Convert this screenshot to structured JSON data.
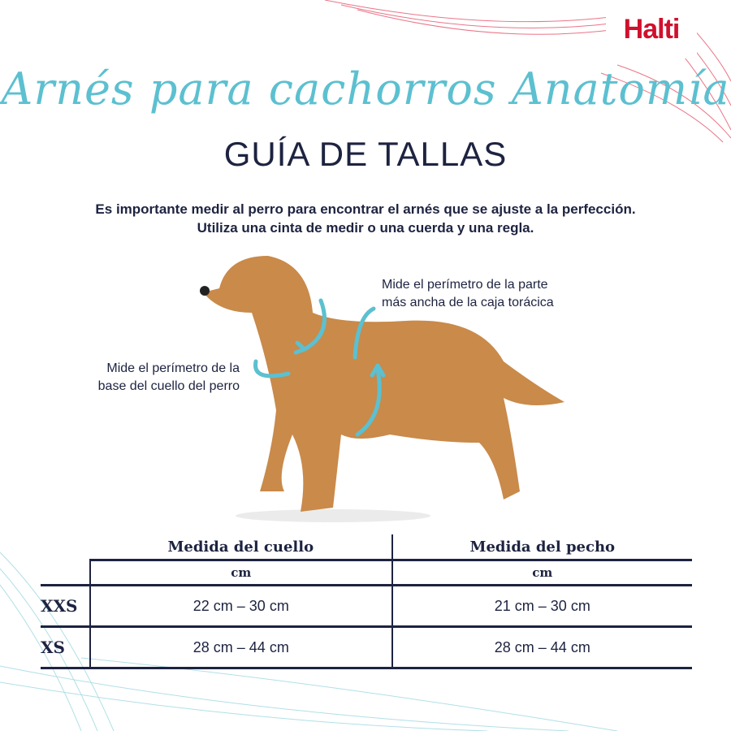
{
  "brand": {
    "logo": "Halti",
    "accent": "#d0102c",
    "script_color": "#5cc0d0"
  },
  "header": {
    "script_title": "Arnés para cachorros Anatomía",
    "title": "GUÍA DE TALLAS"
  },
  "intro": {
    "line1": "Es importante medir al perro para encontrar el arnés que se ajuste a la perfección.",
    "line2": "Utiliza una cinta de medir o una cuerda y una regla."
  },
  "annotations": {
    "chest_line1": "Mide el perímetro de la parte",
    "chest_line2": "más ancha de la caja torácica",
    "neck_line1": "Mide el perímetro de la",
    "neck_line2": "base del cuello del perro"
  },
  "table": {
    "columns": [
      "Medida del cuello",
      "Medida del pecho"
    ],
    "units": [
      "cm",
      "cm"
    ],
    "rows": [
      {
        "size": "XXS",
        "neck": "22 cm – 30 cm",
        "chest": "21 cm – 30 cm"
      },
      {
        "size": "XS",
        "neck": "28 cm – 44 cm",
        "chest": "28 cm – 44 cm"
      }
    ]
  }
}
